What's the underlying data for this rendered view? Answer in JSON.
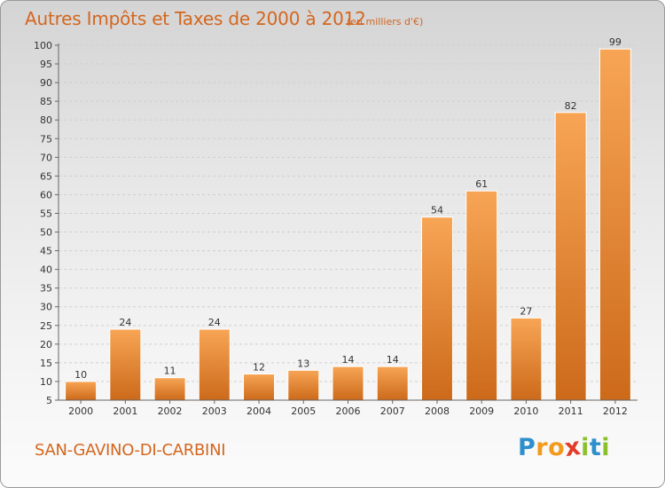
{
  "title": "Autres Impôts et Taxes de 2000 à 2012",
  "subtitle": "(en milliers d'€)",
  "commune": "SAN-GAVINO-DI-CARBINI",
  "logo": {
    "text": "Proxiti",
    "letters": [
      {
        "ch": "P",
        "color": "#2d8fcc"
      },
      {
        "ch": "r",
        "color": "#f29a1c"
      },
      {
        "ch": "o",
        "color": "#f29a1c"
      },
      {
        "ch": "x",
        "color": "#e23c28"
      },
      {
        "ch": "i",
        "color": "#8cbf2e"
      },
      {
        "ch": "t",
        "color": "#2d8fcc"
      },
      {
        "ch": "i",
        "color": "#8cbf2e"
      }
    ]
  },
  "chart_data": {
    "type": "bar",
    "title": "Autres Impôts et Taxes de 2000 à 2012",
    "subtitle": "(en milliers d'€)",
    "categories": [
      "2000",
      "2001",
      "2002",
      "2003",
      "2004",
      "2005",
      "2006",
      "2007",
      "2008",
      "2009",
      "2010",
      "2011",
      "2012"
    ],
    "values": [
      10,
      24,
      11,
      24,
      12,
      13,
      14,
      14,
      54,
      61,
      27,
      82,
      99
    ],
    "ylim": [
      5,
      100
    ],
    "yticks": [
      5,
      10,
      15,
      20,
      25,
      30,
      35,
      40,
      45,
      50,
      55,
      60,
      65,
      70,
      75,
      80,
      85,
      90,
      95,
      100
    ],
    "grid": true,
    "colors": {
      "bar_top": "#f7a555",
      "bar_bottom": "#cc6a1a",
      "accent": "#d4661e"
    }
  }
}
